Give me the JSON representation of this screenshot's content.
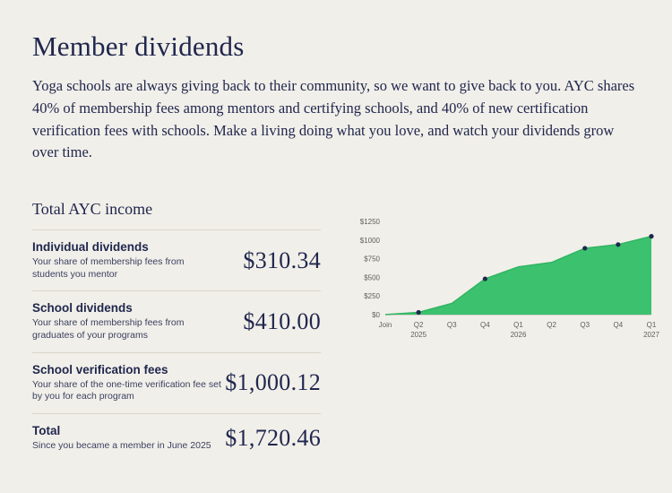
{
  "page": {
    "title": "Member dividends",
    "intro": "Yoga schools are always giving back to their community, so we want to give back to you. AYC shares 40% of membership fees among mentors and certifying schools, and 40% of new certification verification fees with schools. Make a living doing what you love, and watch your dividends grow over time."
  },
  "income": {
    "heading": "Total AYC income",
    "rows": [
      {
        "label": "Individual dividends",
        "description": "Your share of membership fees from students you mentor",
        "amount": "$310.34"
      },
      {
        "label": "School dividends",
        "description": "Your share of membership fees from graduates of your programs",
        "amount": "$410.00"
      },
      {
        "label": "School verification fees",
        "description": "Your share of the one-time verification fee set by you for each program",
        "amount": "$1,000.12"
      },
      {
        "label": "Total",
        "description": "Since you became a member in June 2025",
        "amount": "$1,720.46"
      }
    ]
  },
  "chart_data": {
    "type": "area",
    "title": "",
    "x_labels": [
      "Join",
      "Q2",
      "Q3",
      "Q4",
      "Q1",
      "Q2",
      "Q3",
      "Q4",
      "Q1"
    ],
    "x_sublabels": [
      "",
      "2025",
      "",
      "",
      "2026",
      "",
      "",
      "",
      "2027"
    ],
    "values": [
      0,
      30,
      150,
      480,
      640,
      700,
      890,
      940,
      1050
    ],
    "dot_indices": [
      1,
      3,
      6,
      7,
      8
    ],
    "y_ticks": [
      0,
      250,
      500,
      750,
      1000,
      1250
    ],
    "y_tick_labels": [
      "$0",
      "$250",
      "$500",
      "$750",
      "$1000",
      "$1250"
    ],
    "ylim": [
      0,
      1250
    ],
    "legend": "none",
    "grid": "off",
    "colors": {
      "area_fill": "#3cc16e",
      "area_line": "#31b562",
      "dot": "#20274e",
      "axis_text": "#5d5f58",
      "axis_line": "#b8b5ab"
    }
  }
}
